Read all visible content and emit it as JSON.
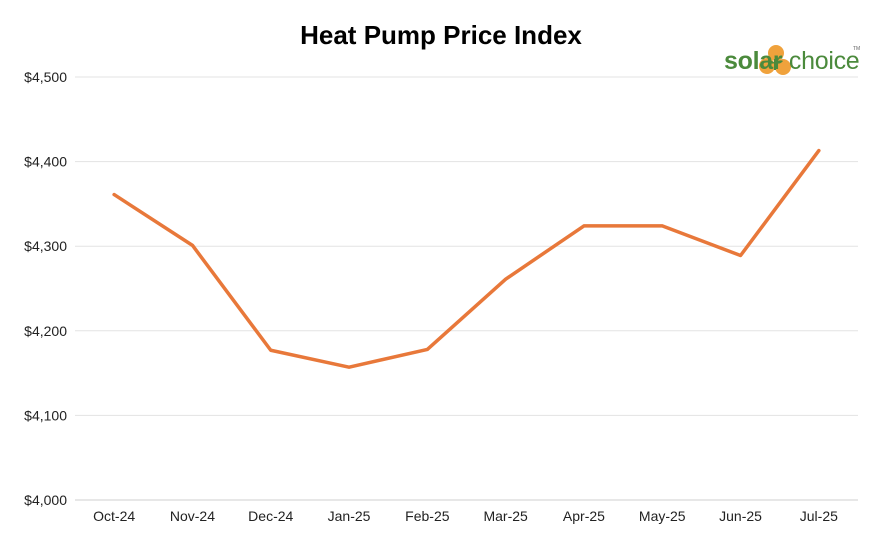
{
  "chart_data": {
    "type": "line",
    "title": "Heat Pump Price Index",
    "xlabel": "",
    "ylabel": "",
    "categories": [
      "Oct-24",
      "Nov-24",
      "Dec-24",
      "Jan-25",
      "Feb-25",
      "Mar-25",
      "Apr-25",
      "May-25",
      "Jun-25",
      "Jul-25"
    ],
    "series": [
      {
        "values": [
          4361,
          4301,
          4177,
          4157,
          4178,
          4261,
          4324,
          4324,
          4289,
          4413
        ]
      }
    ],
    "ylim": [
      4000,
      4500
    ],
    "yticks": [
      4000,
      4100,
      4200,
      4300,
      4400,
      4500
    ],
    "ytick_labels": [
      "$4,000",
      "$4,100",
      "$4,200",
      "$4,300",
      "$4,400",
      "$4,500"
    ],
    "grid": true,
    "colors": {
      "line": "#e8783a",
      "grid": "#e3e3e3",
      "logo_orange": "#f0a23c",
      "logo_green": "#4b8a3c"
    }
  },
  "logo": {
    "text_bold": "solar",
    "text_light": " choice",
    "tm": "TM",
    "icon": "solar-choice-sun-icon"
  }
}
